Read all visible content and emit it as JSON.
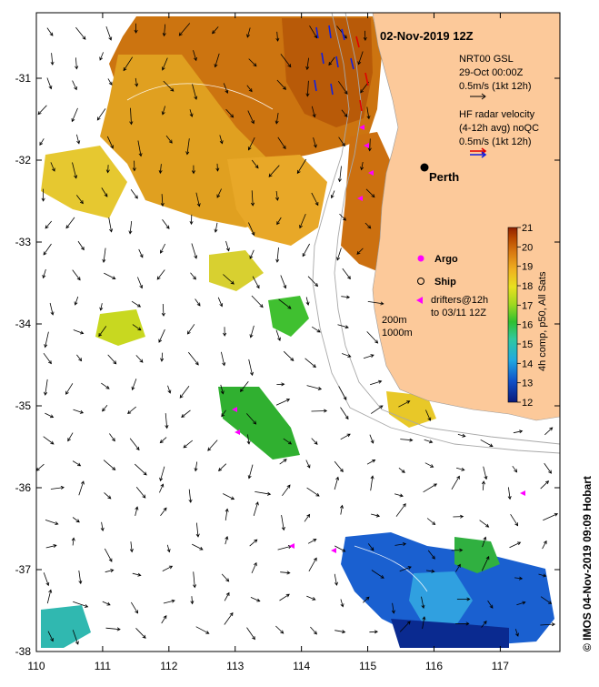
{
  "title": "02-Nov-2019 12Z",
  "model": {
    "line1": "NRT00 GSL",
    "line2": "29-Oct 00:00Z",
    "line3": "0.5m/s (1kt 12h)"
  },
  "radar": {
    "line1": "HF radar velocity",
    "line2": "(4-12h avg) noQC",
    "line3": "0.5m/s (1kt 12h)"
  },
  "city": "Perth",
  "legend": {
    "argo": "Argo",
    "ship": "Ship",
    "drifters1": "drifters@12h",
    "drifters2": "to 03/11 12Z"
  },
  "isobaths": {
    "a": "200m",
    "b": "1000m"
  },
  "colorbar": {
    "label": "4h comp, p50, All Sats",
    "min": 12,
    "max": 21,
    "ticks": [
      "12",
      "13",
      "14",
      "15",
      "16",
      "17",
      "18",
      "19",
      "20",
      "21"
    ]
  },
  "axes": {
    "lon_ticks": [
      "110",
      "111",
      "112",
      "113",
      "114",
      "115",
      "116",
      "117"
    ],
    "lat_ticks": [
      "-31",
      "-32",
      "-33",
      "-34",
      "-35",
      "-36",
      "-37",
      "-38"
    ],
    "lon_range": [
      110,
      117.9
    ],
    "lat_range": [
      -38,
      -30.2
    ]
  },
  "credit": "© IMOS 04-Nov-2019 09:09 Hobart",
  "colors": {
    "land": "#fcc99a",
    "warm": "#c06000",
    "cool": "#1030b0",
    "radar_red": "#e00000",
    "radar_blue": "#1020e0",
    "drifter": "#ff00ff"
  }
}
